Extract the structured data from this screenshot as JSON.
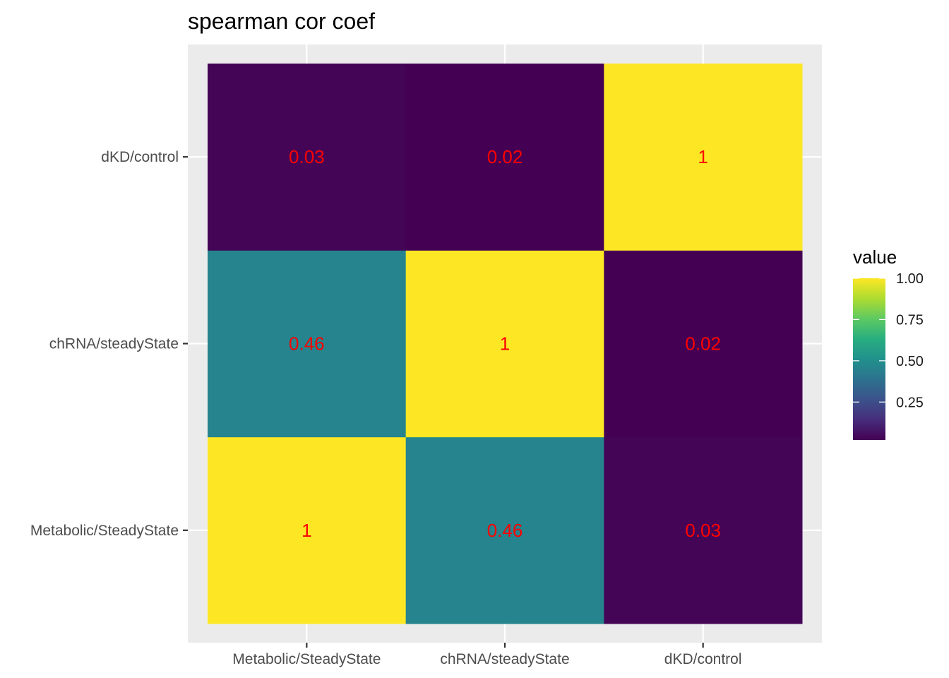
{
  "chart_data": {
    "type": "heatmap",
    "title": "spearman cor coef",
    "xlabel": "",
    "ylabel": "",
    "x_categories": [
      "Metabolic/SteadyState",
      "chRNA/steadyState",
      "dKD/control"
    ],
    "y_categories": [
      "Metabolic/SteadyState",
      "chRNA/steadyState",
      "dKD/control"
    ],
    "cells": [
      {
        "x": "Metabolic/SteadyState",
        "y": "Metabolic/SteadyState",
        "value": 1,
        "label": "1"
      },
      {
        "x": "chRNA/steadyState",
        "y": "Metabolic/SteadyState",
        "value": 0.46,
        "label": "0.46"
      },
      {
        "x": "dKD/control",
        "y": "Metabolic/SteadyState",
        "value": 0.03,
        "label": "0.03"
      },
      {
        "x": "Metabolic/SteadyState",
        "y": "chRNA/steadyState",
        "value": 0.46,
        "label": "0.46"
      },
      {
        "x": "chRNA/steadyState",
        "y": "chRNA/steadyState",
        "value": 1,
        "label": "1"
      },
      {
        "x": "dKD/control",
        "y": "chRNA/steadyState",
        "value": 0.02,
        "label": "0.02"
      },
      {
        "x": "Metabolic/SteadyState",
        "y": "dKD/control",
        "value": 0.03,
        "label": "0.03"
      },
      {
        "x": "chRNA/steadyState",
        "y": "dKD/control",
        "value": 0.02,
        "label": "0.02"
      },
      {
        "x": "dKD/control",
        "y": "dKD/control",
        "value": 1,
        "label": "1"
      }
    ],
    "label_color": "#ff0000",
    "colorscale": "viridis",
    "legend": {
      "title": "value",
      "placement": "right",
      "range": [
        0.02,
        1
      ],
      "ticks": [
        {
          "value": 0.25,
          "label": "0.25"
        },
        {
          "value": 0.5,
          "label": "0.50"
        },
        {
          "value": 0.75,
          "label": "0.75"
        },
        {
          "value": 1.0,
          "label": "1.00"
        }
      ]
    },
    "panel_background": "#ebebeb",
    "grid": true
  }
}
